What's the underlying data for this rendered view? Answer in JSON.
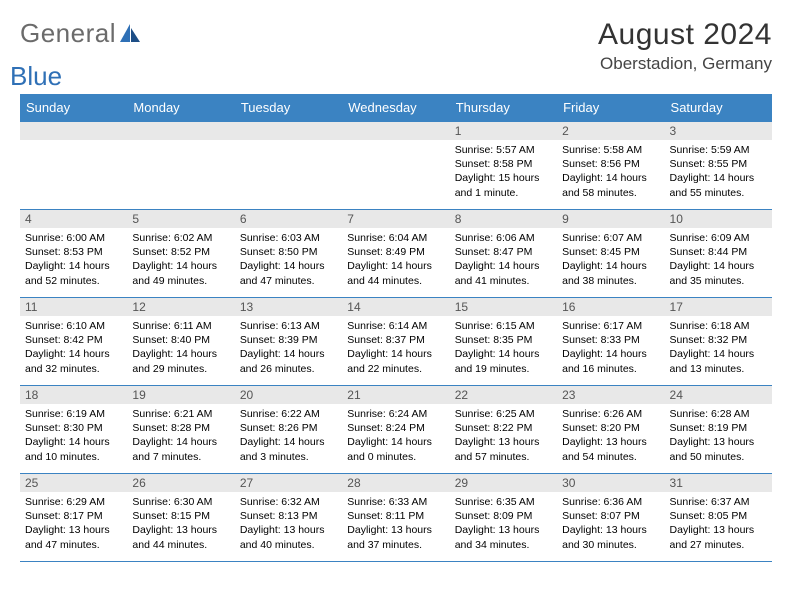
{
  "logo": {
    "text1": "General",
    "text2": "Blue"
  },
  "header": {
    "title": "August 2024",
    "location": "Oberstadion, Germany"
  },
  "theme": {
    "header_bg": "#3b83c2",
    "grid_border": "#3b83c2",
    "daynum_bg": "#e8e8e8",
    "logo_gray": "#6b6b6b",
    "logo_blue": "#2f70b6"
  },
  "weekdays": [
    "Sunday",
    "Monday",
    "Tuesday",
    "Wednesday",
    "Thursday",
    "Friday",
    "Saturday"
  ],
  "weeks": [
    [
      {
        "n": "",
        "l1": "",
        "l2": "",
        "l3": "",
        "l4": ""
      },
      {
        "n": "",
        "l1": "",
        "l2": "",
        "l3": "",
        "l4": ""
      },
      {
        "n": "",
        "l1": "",
        "l2": "",
        "l3": "",
        "l4": ""
      },
      {
        "n": "",
        "l1": "",
        "l2": "",
        "l3": "",
        "l4": ""
      },
      {
        "n": "1",
        "l1": "Sunrise: 5:57 AM",
        "l2": "Sunset: 8:58 PM",
        "l3": "Daylight: 15 hours",
        "l4": "and 1 minute."
      },
      {
        "n": "2",
        "l1": "Sunrise: 5:58 AM",
        "l2": "Sunset: 8:56 PM",
        "l3": "Daylight: 14 hours",
        "l4": "and 58 minutes."
      },
      {
        "n": "3",
        "l1": "Sunrise: 5:59 AM",
        "l2": "Sunset: 8:55 PM",
        "l3": "Daylight: 14 hours",
        "l4": "and 55 minutes."
      }
    ],
    [
      {
        "n": "4",
        "l1": "Sunrise: 6:00 AM",
        "l2": "Sunset: 8:53 PM",
        "l3": "Daylight: 14 hours",
        "l4": "and 52 minutes."
      },
      {
        "n": "5",
        "l1": "Sunrise: 6:02 AM",
        "l2": "Sunset: 8:52 PM",
        "l3": "Daylight: 14 hours",
        "l4": "and 49 minutes."
      },
      {
        "n": "6",
        "l1": "Sunrise: 6:03 AM",
        "l2": "Sunset: 8:50 PM",
        "l3": "Daylight: 14 hours",
        "l4": "and 47 minutes."
      },
      {
        "n": "7",
        "l1": "Sunrise: 6:04 AM",
        "l2": "Sunset: 8:49 PM",
        "l3": "Daylight: 14 hours",
        "l4": "and 44 minutes."
      },
      {
        "n": "8",
        "l1": "Sunrise: 6:06 AM",
        "l2": "Sunset: 8:47 PM",
        "l3": "Daylight: 14 hours",
        "l4": "and 41 minutes."
      },
      {
        "n": "9",
        "l1": "Sunrise: 6:07 AM",
        "l2": "Sunset: 8:45 PM",
        "l3": "Daylight: 14 hours",
        "l4": "and 38 minutes."
      },
      {
        "n": "10",
        "l1": "Sunrise: 6:09 AM",
        "l2": "Sunset: 8:44 PM",
        "l3": "Daylight: 14 hours",
        "l4": "and 35 minutes."
      }
    ],
    [
      {
        "n": "11",
        "l1": "Sunrise: 6:10 AM",
        "l2": "Sunset: 8:42 PM",
        "l3": "Daylight: 14 hours",
        "l4": "and 32 minutes."
      },
      {
        "n": "12",
        "l1": "Sunrise: 6:11 AM",
        "l2": "Sunset: 8:40 PM",
        "l3": "Daylight: 14 hours",
        "l4": "and 29 minutes."
      },
      {
        "n": "13",
        "l1": "Sunrise: 6:13 AM",
        "l2": "Sunset: 8:39 PM",
        "l3": "Daylight: 14 hours",
        "l4": "and 26 minutes."
      },
      {
        "n": "14",
        "l1": "Sunrise: 6:14 AM",
        "l2": "Sunset: 8:37 PM",
        "l3": "Daylight: 14 hours",
        "l4": "and 22 minutes."
      },
      {
        "n": "15",
        "l1": "Sunrise: 6:15 AM",
        "l2": "Sunset: 8:35 PM",
        "l3": "Daylight: 14 hours",
        "l4": "and 19 minutes."
      },
      {
        "n": "16",
        "l1": "Sunrise: 6:17 AM",
        "l2": "Sunset: 8:33 PM",
        "l3": "Daylight: 14 hours",
        "l4": "and 16 minutes."
      },
      {
        "n": "17",
        "l1": "Sunrise: 6:18 AM",
        "l2": "Sunset: 8:32 PM",
        "l3": "Daylight: 14 hours",
        "l4": "and 13 minutes."
      }
    ],
    [
      {
        "n": "18",
        "l1": "Sunrise: 6:19 AM",
        "l2": "Sunset: 8:30 PM",
        "l3": "Daylight: 14 hours",
        "l4": "and 10 minutes."
      },
      {
        "n": "19",
        "l1": "Sunrise: 6:21 AM",
        "l2": "Sunset: 8:28 PM",
        "l3": "Daylight: 14 hours",
        "l4": "and 7 minutes."
      },
      {
        "n": "20",
        "l1": "Sunrise: 6:22 AM",
        "l2": "Sunset: 8:26 PM",
        "l3": "Daylight: 14 hours",
        "l4": "and 3 minutes."
      },
      {
        "n": "21",
        "l1": "Sunrise: 6:24 AM",
        "l2": "Sunset: 8:24 PM",
        "l3": "Daylight: 14 hours",
        "l4": "and 0 minutes."
      },
      {
        "n": "22",
        "l1": "Sunrise: 6:25 AM",
        "l2": "Sunset: 8:22 PM",
        "l3": "Daylight: 13 hours",
        "l4": "and 57 minutes."
      },
      {
        "n": "23",
        "l1": "Sunrise: 6:26 AM",
        "l2": "Sunset: 8:20 PM",
        "l3": "Daylight: 13 hours",
        "l4": "and 54 minutes."
      },
      {
        "n": "24",
        "l1": "Sunrise: 6:28 AM",
        "l2": "Sunset: 8:19 PM",
        "l3": "Daylight: 13 hours",
        "l4": "and 50 minutes."
      }
    ],
    [
      {
        "n": "25",
        "l1": "Sunrise: 6:29 AM",
        "l2": "Sunset: 8:17 PM",
        "l3": "Daylight: 13 hours",
        "l4": "and 47 minutes."
      },
      {
        "n": "26",
        "l1": "Sunrise: 6:30 AM",
        "l2": "Sunset: 8:15 PM",
        "l3": "Daylight: 13 hours",
        "l4": "and 44 minutes."
      },
      {
        "n": "27",
        "l1": "Sunrise: 6:32 AM",
        "l2": "Sunset: 8:13 PM",
        "l3": "Daylight: 13 hours",
        "l4": "and 40 minutes."
      },
      {
        "n": "28",
        "l1": "Sunrise: 6:33 AM",
        "l2": "Sunset: 8:11 PM",
        "l3": "Daylight: 13 hours",
        "l4": "and 37 minutes."
      },
      {
        "n": "29",
        "l1": "Sunrise: 6:35 AM",
        "l2": "Sunset: 8:09 PM",
        "l3": "Daylight: 13 hours",
        "l4": "and 34 minutes."
      },
      {
        "n": "30",
        "l1": "Sunrise: 6:36 AM",
        "l2": "Sunset: 8:07 PM",
        "l3": "Daylight: 13 hours",
        "l4": "and 30 minutes."
      },
      {
        "n": "31",
        "l1": "Sunrise: 6:37 AM",
        "l2": "Sunset: 8:05 PM",
        "l3": "Daylight: 13 hours",
        "l4": "and 27 minutes."
      }
    ]
  ]
}
